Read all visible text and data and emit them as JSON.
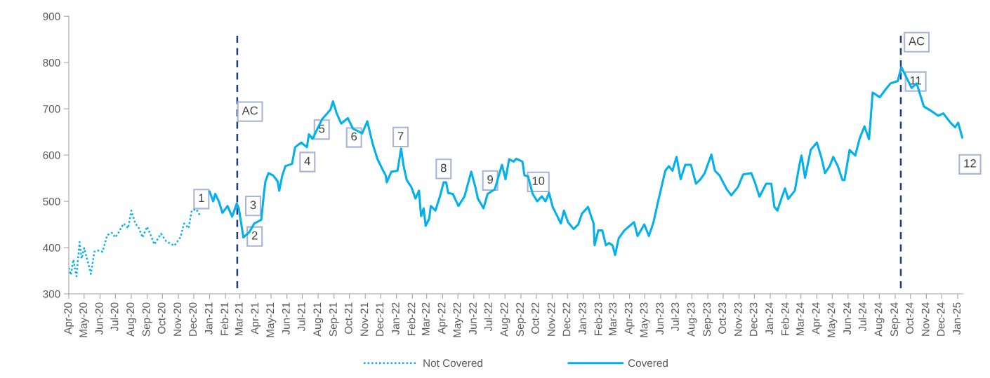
{
  "chart_data": {
    "type": "line",
    "series": [
      {
        "name": "Not Covered",
        "color": "#00b0f0",
        "line_style": "dotted",
        "x": [
          "2020-04-01",
          "2020-04-05",
          "2020-04-10",
          "2020-04-16",
          "2020-04-22",
          "2020-04-26",
          "2020-05-01",
          "2020-05-09",
          "2020-05-14",
          "2020-05-21",
          "2020-05-27",
          "2020-06-06",
          "2020-06-15",
          "2020-06-24",
          "2020-07-01",
          "2020-07-08",
          "2020-07-17",
          "2020-07-26",
          "2020-08-01",
          "2020-08-09",
          "2020-08-16",
          "2020-08-23",
          "2020-09-01",
          "2020-09-08",
          "2020-09-15",
          "2020-09-28",
          "2020-10-08",
          "2020-10-24",
          "2020-11-05",
          "2020-11-12",
          "2020-11-21",
          "2020-11-27",
          "2020-12-06",
          "2020-12-13"
        ],
        "values": [
          356,
          341,
          374,
          338,
          412,
          376,
          399,
          366,
          343,
          391,
          394,
          391,
          427,
          432,
          422,
          434,
          452,
          442,
          480,
          452,
          442,
          422,
          445,
          427,
          407,
          430,
          414,
          404,
          422,
          452,
          442,
          480,
          483,
          470
        ]
      },
      {
        "name": "Covered",
        "color": "#00b0f0",
        "line_style": "solid",
        "x": [
          "2021-01-01",
          "2021-01-08",
          "2021-01-12",
          "2021-01-19",
          "2021-01-26",
          "2021-02-05",
          "2021-02-14",
          "2021-02-23",
          "2021-02-27",
          "2021-03-08",
          "2021-03-20",
          "2021-03-29",
          "2021-04-12",
          "2021-04-17",
          "2021-04-20",
          "2021-04-26",
          "2021-05-05",
          "2021-05-14",
          "2021-05-17",
          "2021-05-23",
          "2021-05-29",
          "2021-06-11",
          "2021-06-17",
          "2021-06-29",
          "2021-07-10",
          "2021-07-14",
          "2021-07-21",
          "2021-08-09",
          "2021-08-25",
          "2021-08-30",
          "2021-09-06",
          "2021-09-15",
          "2021-09-28",
          "2021-10-08",
          "2021-10-26",
          "2021-11-05",
          "2021-11-16",
          "2021-11-25",
          "2021-12-06",
          "2021-12-11",
          "2021-12-13",
          "2021-12-22",
          "2022-01-03",
          "2022-01-10",
          "2022-01-15",
          "2022-01-21",
          "2022-01-30",
          "2022-02-07",
          "2022-02-14",
          "2022-02-18",
          "2022-02-23",
          "2022-02-27",
          "2022-03-06",
          "2022-03-09",
          "2022-03-18",
          "2022-03-27",
          "2022-04-03",
          "2022-04-08",
          "2022-04-12",
          "2022-04-21",
          "2022-05-02",
          "2022-05-14",
          "2022-05-27",
          "2022-06-04",
          "2022-06-09",
          "2022-06-20",
          "2022-06-28",
          "2022-07-12",
          "2022-07-26",
          "2022-08-02",
          "2022-08-09",
          "2022-08-18",
          "2022-08-23",
          "2022-09-04",
          "2022-09-08",
          "2022-09-15",
          "2022-09-24",
          "2022-10-03",
          "2022-10-12",
          "2022-10-19",
          "2022-10-26",
          "2022-11-02",
          "2022-11-11",
          "2022-11-18",
          "2022-11-24",
          "2022-12-02",
          "2022-12-13",
          "2022-12-22",
          "2022-12-29",
          "2023-01-10",
          "2023-01-21",
          "2023-01-23",
          "2023-01-30",
          "2023-02-07",
          "2023-02-14",
          "2023-02-20",
          "2023-02-27",
          "2023-03-04",
          "2023-03-11",
          "2023-03-22",
          "2023-04-10",
          "2023-04-17",
          "2023-04-30",
          "2023-05-09",
          "2023-05-18",
          "2023-05-27",
          "2023-06-10",
          "2023-06-17",
          "2023-06-24",
          "2023-07-02",
          "2023-07-10",
          "2023-07-19",
          "2023-07-30",
          "2023-08-09",
          "2023-08-18",
          "2023-08-26",
          "2023-09-08",
          "2023-09-15",
          "2023-09-24",
          "2023-10-08",
          "2023-10-17",
          "2023-10-30",
          "2023-11-09",
          "2023-11-25",
          "2023-12-02",
          "2023-12-11",
          "2023-12-24",
          "2024-01-03",
          "2024-01-09",
          "2024-01-15",
          "2024-01-24",
          "2024-01-30",
          "2024-02-05",
          "2024-02-18",
          "2024-02-27",
          "2024-03-02",
          "2024-03-09",
          "2024-03-20",
          "2024-04-01",
          "2024-04-10",
          "2024-04-17",
          "2024-04-26",
          "2024-05-03",
          "2024-05-12",
          "2024-05-21",
          "2024-05-25",
          "2024-06-04",
          "2024-06-15",
          "2024-06-24",
          "2024-07-03",
          "2024-07-12",
          "2024-07-19",
          "2024-08-02",
          "2024-08-12",
          "2024-08-23",
          "2024-09-06",
          "2024-09-13",
          "2024-09-22",
          "2024-10-03",
          "2024-10-13",
          "2024-10-27",
          "2024-11-11",
          "2024-11-24",
          "2024-12-04",
          "2024-12-18",
          "2024-12-27",
          "2025-01-02",
          "2025-01-10"
        ],
        "values": [
          521,
          500,
          516,
          500,
          475,
          490,
          467,
          495,
          485,
          422,
          434,
          452,
          460,
          516,
          543,
          561,
          556,
          543,
          523,
          556,
          576,
          581,
          617,
          627,
          617,
          645,
          635,
          678,
          698,
          716,
          691,
          668,
          680,
          657,
          647,
          673,
          622,
          591,
          566,
          556,
          541,
          564,
          566,
          614,
          576,
          546,
          531,
          506,
          523,
          468,
          485,
          447,
          463,
          490,
          480,
          511,
          541,
          541,
          518,
          516,
          490,
          511,
          564,
          531,
          506,
          485,
          516,
          526,
          579,
          548,
          591,
          586,
          592,
          586,
          556,
          554,
          516,
          500,
          511,
          500,
          518,
          488,
          468,
          452,
          480,
          455,
          440,
          450,
          473,
          488,
          452,
          405,
          437,
          437,
          405,
          410,
          405,
          384,
          420,
          437,
          455,
          425,
          450,
          425,
          455,
          500,
          566,
          576,
          566,
          596,
          548,
          579,
          579,
          538,
          548,
          561,
          601,
          566,
          556,
          526,
          513,
          531,
          558,
          561,
          541,
          510,
          538,
          538,
          488,
          480,
          510,
          528,
          505,
          523,
          579,
          599,
          551,
          611,
          627,
          594,
          561,
          576,
          596,
          576,
          546,
          546,
          611,
          599,
          637,
          662,
          634,
          735,
          725,
          740,
          755,
          760,
          790,
          770,
          745,
          755,
          705,
          695,
          685,
          690,
          670,
          660,
          670,
          638
        ]
      }
    ],
    "xlim": [
      "2020-04-01",
      "2025-01-12"
    ],
    "xticks": [
      {
        "value": "2020-04-01",
        "label": "Apr-20"
      },
      {
        "value": "2020-05-01",
        "label": "May-20"
      },
      {
        "value": "2020-06-01",
        "label": "Jun-20"
      },
      {
        "value": "2020-07-01",
        "label": "Jul-20"
      },
      {
        "value": "2020-08-01",
        "label": "Aug-20"
      },
      {
        "value": "2020-09-01",
        "label": "Sep-20"
      },
      {
        "value": "2020-10-01",
        "label": "Oct-20"
      },
      {
        "value": "2020-11-01",
        "label": "Nov-20"
      },
      {
        "value": "2020-12-01",
        "label": "Dec-20"
      },
      {
        "value": "2021-01-01",
        "label": "Jan-21"
      },
      {
        "value": "2021-02-01",
        "label": "Feb-21"
      },
      {
        "value": "2021-03-01",
        "label": "Mar-21"
      },
      {
        "value": "2021-04-01",
        "label": "Apr-21"
      },
      {
        "value": "2021-05-01",
        "label": "May-21"
      },
      {
        "value": "2021-06-01",
        "label": "Jun-21"
      },
      {
        "value": "2021-07-01",
        "label": "Jul-21"
      },
      {
        "value": "2021-08-01",
        "label": "Aug-21"
      },
      {
        "value": "2021-09-01",
        "label": "Sep-21"
      },
      {
        "value": "2021-10-01",
        "label": "Oct-21"
      },
      {
        "value": "2021-11-01",
        "label": "Nov-21"
      },
      {
        "value": "2021-12-01",
        "label": "Dec-21"
      },
      {
        "value": "2022-01-01",
        "label": "Jan-22"
      },
      {
        "value": "2022-02-01",
        "label": "Feb-22"
      },
      {
        "value": "2022-03-01",
        "label": "Mar-22"
      },
      {
        "value": "2022-04-01",
        "label": "Apr-22"
      },
      {
        "value": "2022-05-01",
        "label": "May-22"
      },
      {
        "value": "2022-06-01",
        "label": "Jun-22"
      },
      {
        "value": "2022-07-01",
        "label": "Jul-22"
      },
      {
        "value": "2022-08-01",
        "label": "Aug-22"
      },
      {
        "value": "2022-09-01",
        "label": "Sep-22"
      },
      {
        "value": "2022-10-01",
        "label": "Oct-22"
      },
      {
        "value": "2022-11-01",
        "label": "Nov-22"
      },
      {
        "value": "2022-12-01",
        "label": "Dec-22"
      },
      {
        "value": "2023-01-01",
        "label": "Jan-23"
      },
      {
        "value": "2023-02-01",
        "label": "Feb-23"
      },
      {
        "value": "2023-03-01",
        "label": "Mar-23"
      },
      {
        "value": "2023-04-01",
        "label": "Apr-23"
      },
      {
        "value": "2023-05-01",
        "label": "May-23"
      },
      {
        "value": "2023-06-01",
        "label": "Jun-23"
      },
      {
        "value": "2023-07-01",
        "label": "Jul-23"
      },
      {
        "value": "2023-08-01",
        "label": "Aug-23"
      },
      {
        "value": "2023-09-01",
        "label": "Sep-23"
      },
      {
        "value": "2023-10-01",
        "label": "Oct-23"
      },
      {
        "value": "2023-11-01",
        "label": "Nov-23"
      },
      {
        "value": "2023-12-01",
        "label": "Dec-23"
      },
      {
        "value": "2024-01-01",
        "label": "Jan-24"
      },
      {
        "value": "2024-02-01",
        "label": "Feb-24"
      },
      {
        "value": "2024-03-01",
        "label": "Mar-24"
      },
      {
        "value": "2024-04-01",
        "label": "Apr-24"
      },
      {
        "value": "2024-05-01",
        "label": "May-24"
      },
      {
        "value": "2024-06-01",
        "label": "Jun-24"
      },
      {
        "value": "2024-07-01",
        "label": "Jul-24"
      },
      {
        "value": "2024-08-01",
        "label": "Aug-24"
      },
      {
        "value": "2024-09-01",
        "label": "Sep-24"
      },
      {
        "value": "2024-10-01",
        "label": "Oct-24"
      },
      {
        "value": "2024-11-01",
        "label": "Nov-24"
      },
      {
        "value": "2024-12-01",
        "label": "Dec-24"
      },
      {
        "value": "2025-01-01",
        "label": "Jan-25"
      }
    ],
    "ylim": [
      300,
      900
    ],
    "yticks": [
      300,
      400,
      500,
      600,
      700,
      800,
      900
    ],
    "ref_lines": [
      {
        "axis": "x",
        "value": "2021-02-24",
        "color": "#1f3c7a",
        "line_style": "dashed"
      },
      {
        "axis": "x",
        "value": "2024-09-12",
        "color": "#1f3c7a",
        "line_style": "dashed"
      }
    ],
    "annotations": [
      {
        "text": "AC",
        "x": "2021-03-21",
        "y": 694
      },
      {
        "text": "AC",
        "x": "2024-10-13",
        "y": 844
      },
      {
        "text": "1",
        "x": "2020-12-16",
        "y": 505
      },
      {
        "text": "2",
        "x": "2021-03-30",
        "y": 424
      },
      {
        "text": "3",
        "x": "2021-03-27",
        "y": 490
      },
      {
        "text": "4",
        "x": "2021-07-11",
        "y": 585
      },
      {
        "text": "5",
        "x": "2021-08-08",
        "y": 655
      },
      {
        "text": "6",
        "x": "2021-10-10",
        "y": 638
      },
      {
        "text": "7",
        "x": "2022-01-09",
        "y": 639
      },
      {
        "text": "8",
        "x": "2022-04-03",
        "y": 570
      },
      {
        "text": "9",
        "x": "2022-07-03",
        "y": 545
      },
      {
        "text": "10",
        "x": "2022-10-05",
        "y": 542
      },
      {
        "text": "11",
        "x": "2024-10-11",
        "y": 759
      },
      {
        "text": "12",
        "x": "2025-01-25",
        "y": 580
      }
    ],
    "grid": false,
    "legend": "bottom",
    "marker": "none"
  }
}
